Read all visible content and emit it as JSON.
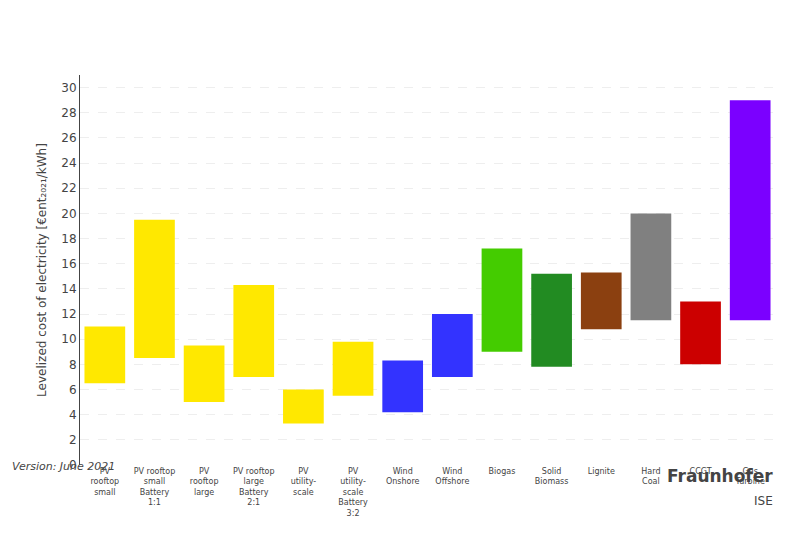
{
  "chart_data": {
    "type": "bar",
    "categories": [
      "PV\nrooftop\nsmall",
      "PV rooftop\nsmall\nBattery\n1:1",
      "PV\nrooftop\nlarge",
      "PV rooftop\nlarge\nBattery\n2:1",
      "PV\nutility-\nscale",
      "PV\nutility-\nscale\nBattery\n3:2",
      "Wind\nOnshore",
      "Wind\nOffshore",
      "Biogas",
      "Solid\nBiomass",
      "Lignite",
      "Hard\nCoal",
      "CCGT",
      "Gas\nTurbine"
    ],
    "low": [
      6.5,
      8.5,
      5.0,
      7.0,
      3.3,
      5.5,
      4.2,
      7.0,
      9.0,
      7.8,
      10.8,
      11.5,
      8.0,
      11.5
    ],
    "high": [
      11.0,
      19.5,
      9.5,
      14.3,
      6.0,
      9.8,
      8.3,
      12.0,
      17.2,
      15.2,
      15.3,
      20.0,
      13.0,
      29.0
    ],
    "colors": [
      "#FFE800",
      "#FFE800",
      "#FFE800",
      "#FFE800",
      "#FFE800",
      "#FFE800",
      "#3333FF",
      "#3333FF",
      "#44CC00",
      "#228B22",
      "#8B4010",
      "#808080",
      "#CC0000",
      "#7B00FF"
    ],
    "ylabel": "Levelized cost of electricity [€ent₂₀₂₁/kWh]",
    "ylim": [
      0,
      31
    ],
    "yticks": [
      0,
      2,
      4,
      6,
      8,
      10,
      12,
      14,
      16,
      18,
      20,
      22,
      24,
      26,
      28,
      30
    ],
    "grid": true,
    "annotations": [
      "Version: June 2021",
      "Fraunhofer",
      "ISE"
    ]
  }
}
